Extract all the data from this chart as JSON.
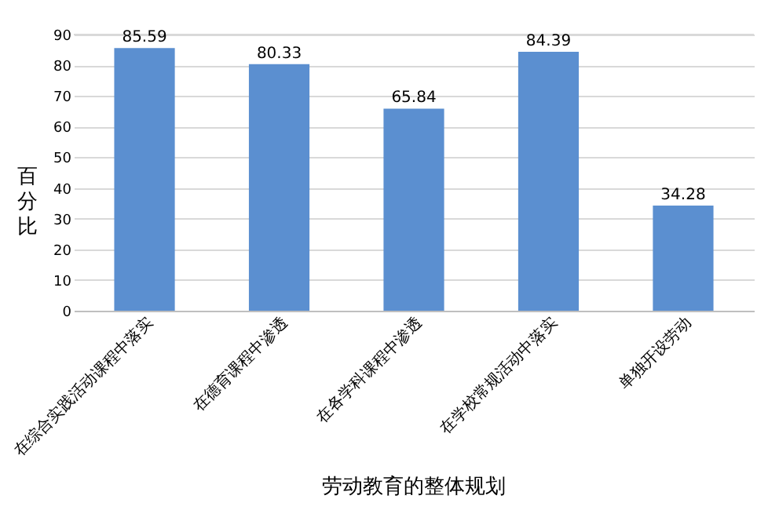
{
  "chart_data": {
    "type": "bar",
    "title": "劳动教育的整体规划",
    "ylabel": "百分比",
    "categories": [
      "在综合实践活动课程中落实",
      "在德育课程中渗透",
      "在各学科课程中渗透",
      "在学校常规活动中落实",
      "单独开设劳动"
    ],
    "values": [
      85.59,
      80.33,
      65.84,
      84.39,
      34.28
    ],
    "color": "#5b8fd0",
    "ylim": [
      0,
      90
    ],
    "yticks": [
      0,
      10,
      20,
      30,
      40,
      50,
      60,
      70,
      80,
      90
    ],
    "grid": "y",
    "data_labels": true
  }
}
